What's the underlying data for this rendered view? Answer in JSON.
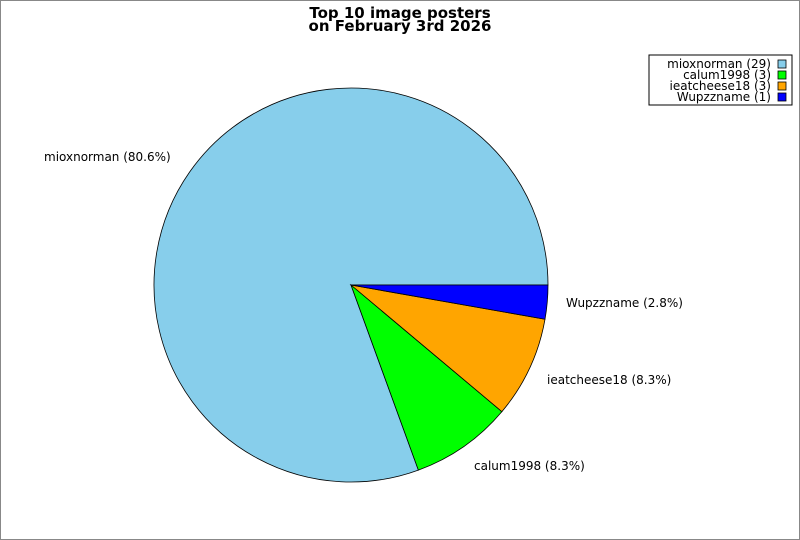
{
  "chart_data": {
    "type": "pie",
    "title": [
      "Top 10 image posters",
      "on February 3rd 2026"
    ],
    "slices": [
      {
        "name": "mioxnorman",
        "value": 29,
        "percent_label": "mioxnorman (80.6%)",
        "legend_label": "mioxnorman (29)",
        "color": "#87ceeb"
      },
      {
        "name": "calum1998",
        "value": 3,
        "percent_label": "calum1998 (8.3%)",
        "legend_label": "calum1998 (3)",
        "color": "#00ff00"
      },
      {
        "name": "ieatcheese18",
        "value": 3,
        "percent_label": "ieatcheese18 (8.3%)",
        "legend_label": "ieatcheese18 (3)",
        "color": "#ffa500"
      },
      {
        "name": "Wupzzname",
        "value": 1,
        "percent_label": "Wupzzname (2.8%)",
        "legend_label": "Wupzzname (1)",
        "color": "#0000ff"
      }
    ],
    "legend_position": "top-right"
  }
}
